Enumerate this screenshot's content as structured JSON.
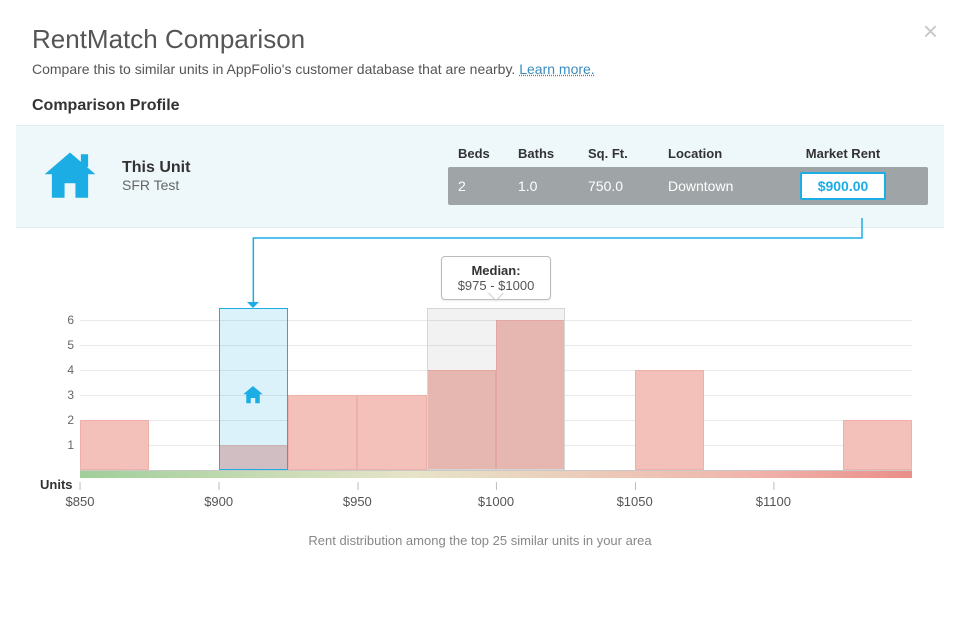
{
  "title": "RentMatch Comparison",
  "subtitle_pre": "Compare this to similar units in AppFolio's customer database that are nearby. ",
  "learn_more": "Learn more.",
  "section_heading": "Comparison Profile",
  "unit": {
    "label": "This Unit",
    "name": "SFR Test",
    "columns": {
      "beds": "Beds",
      "baths": "Baths",
      "sqft": "Sq. Ft.",
      "location": "Location",
      "rent": "Market Rent"
    },
    "values": {
      "beds": "2",
      "baths": "1.0",
      "sqft": "750.0",
      "location": "Downtown",
      "rent": "$900.00"
    }
  },
  "chart": {
    "type": "histogram",
    "ylabel": "Units",
    "yticks": [
      1,
      2,
      3,
      4,
      5,
      6
    ],
    "ymax": 6.5,
    "xmin": 850,
    "xmax": 1150,
    "xticks": [
      850,
      900,
      950,
      1000,
      1050,
      1100
    ],
    "xtick_labels": [
      "$850",
      "$900",
      "$950",
      "$1000",
      "$1050",
      "$1100"
    ],
    "bin_width": 25,
    "bars": [
      {
        "x": 850,
        "h": 2
      },
      {
        "x": 900,
        "h": 1
      },
      {
        "x": 925,
        "h": 3
      },
      {
        "x": 950,
        "h": 3
      },
      {
        "x": 975,
        "h": 4
      },
      {
        "x": 1000,
        "h": 6
      },
      {
        "x": 1050,
        "h": 4
      },
      {
        "x": 1125,
        "h": 2
      }
    ],
    "median_overlay": {
      "x": 975,
      "w": 50,
      "h": 6.5
    },
    "your_rent_overlay": {
      "x": 900,
      "w": 25,
      "h": 6.5
    },
    "house_marker_unit_y": 3,
    "median_tooltip": {
      "label": "Median:",
      "value": "$975 - $1000"
    },
    "caption": "Rent distribution among the top 25 similar units in your area",
    "colors": {
      "bar_fill": "#f3c0ba",
      "bar_border": "#edb1aa",
      "accent": "#1cade4",
      "grid": "#e9e9e9"
    }
  }
}
